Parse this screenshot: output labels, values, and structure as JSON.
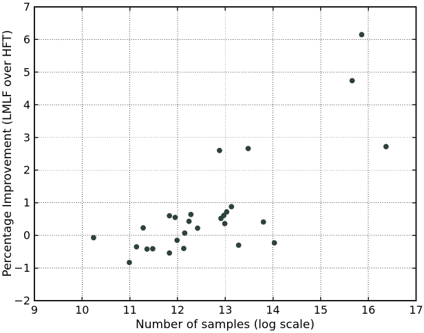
{
  "chart_data": {
    "type": "scatter",
    "title": "",
    "xlabel": "Number of samples (log scale)",
    "ylabel": "Percentage Improvement (LMLF over HFT)",
    "xlim": [
      9,
      17
    ],
    "ylim": [
      -2,
      7
    ],
    "x_ticks": [
      9,
      10,
      11,
      12,
      13,
      14,
      15,
      16,
      17
    ],
    "y_ticks": [
      -2,
      -1,
      0,
      1,
      2,
      3,
      4,
      5,
      6,
      7
    ],
    "grid": "dotted",
    "legend_position": "none",
    "marker": {
      "shape": "circle",
      "color": "#2e4337",
      "radius_px": 3.9
    },
    "frame_color": "#1a1a1a",
    "grid_color": "#1a1a1a",
    "points": [
      [
        10.24,
        -0.07
      ],
      [
        10.99,
        -0.83
      ],
      [
        11.14,
        -0.35
      ],
      [
        11.28,
        0.23
      ],
      [
        11.36,
        -0.42
      ],
      [
        11.48,
        -0.41
      ],
      [
        11.83,
        0.6
      ],
      [
        11.83,
        -0.54
      ],
      [
        11.95,
        0.55
      ],
      [
        11.99,
        -0.15
      ],
      [
        12.13,
        -0.4
      ],
      [
        12.15,
        0.07
      ],
      [
        12.24,
        0.43
      ],
      [
        12.28,
        0.64
      ],
      [
        12.42,
        0.22
      ],
      [
        12.88,
        2.6
      ],
      [
        12.91,
        0.52
      ],
      [
        12.97,
        0.61
      ],
      [
        12.99,
        0.36
      ],
      [
        13.03,
        0.72
      ],
      [
        13.13,
        0.88
      ],
      [
        13.28,
        -0.3
      ],
      [
        13.48,
        2.66
      ],
      [
        13.8,
        0.41
      ],
      [
        14.03,
        -0.23
      ],
      [
        15.66,
        4.74
      ],
      [
        15.86,
        6.15
      ],
      [
        16.37,
        2.72
      ]
    ]
  }
}
